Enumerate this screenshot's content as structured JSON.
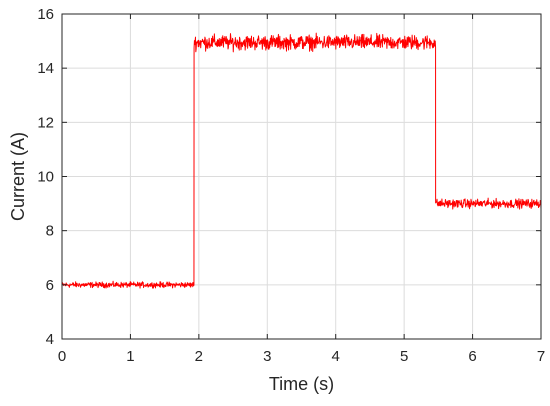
{
  "chart_data": {
    "type": "line",
    "title": "",
    "xlabel": "Time (s)",
    "ylabel": "Current (A)",
    "xlim": [
      0,
      7
    ],
    "ylim": [
      4,
      16
    ],
    "xticks": [
      0,
      1,
      2,
      3,
      4,
      5,
      6,
      7
    ],
    "yticks": [
      4,
      6,
      8,
      10,
      12,
      14,
      16
    ],
    "grid": true,
    "legend": "none",
    "line_color": "#ff0000",
    "grid_color": "#dcdcdc",
    "axis_color": "#262626",
    "series": [
      {
        "x": [
          0,
          1.93,
          1.93,
          5.46,
          5.46,
          7
        ],
        "y": [
          6.0,
          6.0,
          14.95,
          14.95,
          9.0,
          9.0
        ],
        "segments": [
          {
            "x": [
              0,
              1.93
            ],
            "y_mean": 6.0,
            "y_min": 5.88,
            "y_max": 6.15
          },
          {
            "x": [
              1.93,
              5.46
            ],
            "y_mean": 14.95,
            "y_min": 14.55,
            "y_max": 15.35
          },
          {
            "x": [
              5.46,
              7
            ],
            "y_mean": 9.0,
            "y_min": 8.76,
            "y_max": 9.22
          }
        ]
      }
    ]
  }
}
